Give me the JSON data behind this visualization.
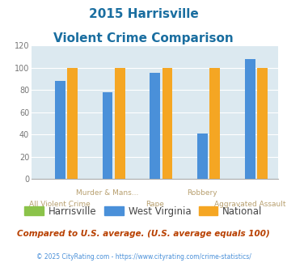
{
  "title_line1": "2015 Harrisville",
  "title_line2": "Violent Crime Comparison",
  "categories": [
    "All Violent Crime",
    "Murder & Mans...",
    "Rape",
    "Robbery",
    "Aggravated Assault"
  ],
  "row1_labels": [
    "Murder & Mans...",
    "Robbery"
  ],
  "row2_labels": [
    "All Violent Crime",
    "Rape",
    "Aggravated Assault"
  ],
  "row1_indices": [
    1,
    3
  ],
  "row2_indices": [
    0,
    2,
    4
  ],
  "harrisville": [
    0,
    0,
    0,
    0,
    0
  ],
  "west_virginia": [
    88,
    78,
    95,
    41,
    108
  ],
  "national": [
    100,
    100,
    100,
    100,
    100
  ],
  "harrisville_color": "#8bc34a",
  "west_virginia_color": "#4a90d9",
  "national_color": "#f5a623",
  "ylim": [
    0,
    120
  ],
  "yticks": [
    0,
    20,
    40,
    60,
    80,
    100,
    120
  ],
  "bg_color": "#dce9f0",
  "title_color": "#1a6ea0",
  "xlabel_color": "#b8a070",
  "footer_text": "Compared to U.S. average. (U.S. average equals 100)",
  "copyright_text": "© 2025 CityRating.com - https://www.cityrating.com/crime-statistics/",
  "legend_labels": [
    "Harrisville",
    "West Virginia",
    "National"
  ]
}
